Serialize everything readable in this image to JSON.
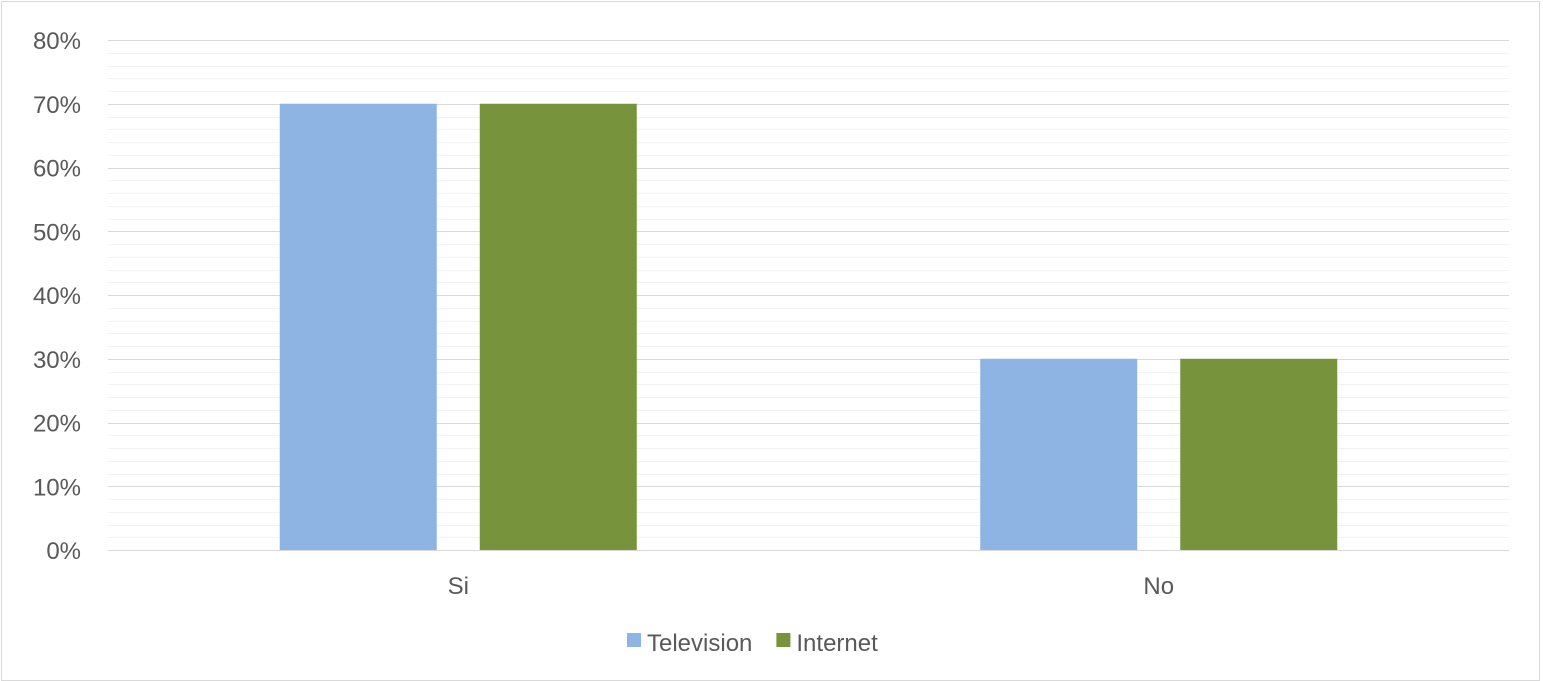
{
  "chart_data": {
    "type": "bar",
    "title": "",
    "xlabel": "",
    "ylabel": "",
    "categories": [
      "Si",
      "No"
    ],
    "series": [
      {
        "name": "Television",
        "values": [
          0.7,
          0.3
        ],
        "color": "#8eb4e3"
      },
      {
        "name": "Internet",
        "values": [
          0.7,
          0.3
        ],
        "color": "#77933c"
      }
    ],
    "ylim": [
      0,
      0.8
    ],
    "y_ticks": [
      "0%",
      "10%",
      "20%",
      "30%",
      "40%",
      "50%",
      "60%",
      "70%",
      "80%"
    ],
    "y_tick_values": [
      0,
      0.1,
      0.2,
      0.3,
      0.4,
      0.5,
      0.6,
      0.7,
      0.8
    ],
    "y_minor_step": 0.02,
    "grid": true,
    "legend_position": "bottom",
    "colors": {
      "gridline_major": "#d9d9d9",
      "gridline_minor": "#f2f2f2",
      "axis_line": "#d9d9d9",
      "text": "#595959"
    }
  }
}
